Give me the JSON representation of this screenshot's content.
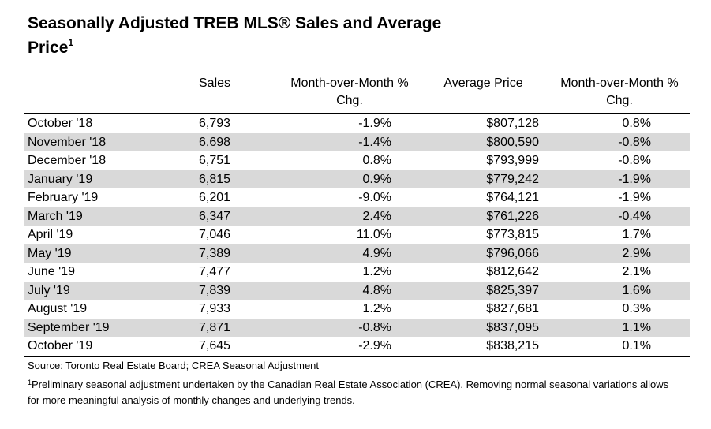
{
  "title": {
    "text": "Seasonally Adjusted TREB MLS® Sales and Average Price",
    "superscript": "1"
  },
  "headers": {
    "sales": "Sales",
    "mom_sales": "Month-over-Month % Chg.",
    "avg_price": "Average Price",
    "mom_price": "Month-over-Month % Chg."
  },
  "rows": [
    {
      "month": "October '18",
      "sales": "6,793",
      "sales_chg": "-1.9%",
      "price": "$807,128",
      "price_chg": "0.8%"
    },
    {
      "month": "November '18",
      "sales": "6,698",
      "sales_chg": "-1.4%",
      "price": "$800,590",
      "price_chg": "-0.8%"
    },
    {
      "month": "December '18",
      "sales": "6,751",
      "sales_chg": "0.8%",
      "price": "$793,999",
      "price_chg": "-0.8%"
    },
    {
      "month": "January '19",
      "sales": "6,815",
      "sales_chg": "0.9%",
      "price": "$779,242",
      "price_chg": "-1.9%"
    },
    {
      "month": "February '19",
      "sales": "6,201",
      "sales_chg": "-9.0%",
      "price": "$764,121",
      "price_chg": "-1.9%"
    },
    {
      "month": "March '19",
      "sales": "6,347",
      "sales_chg": "2.4%",
      "price": "$761,226",
      "price_chg": "-0.4%"
    },
    {
      "month": "April '19",
      "sales": "7,046",
      "sales_chg": "11.0%",
      "price": "$773,815",
      "price_chg": "1.7%"
    },
    {
      "month": "May '19",
      "sales": "7,389",
      "sales_chg": "4.9%",
      "price": "$796,066",
      "price_chg": "2.9%"
    },
    {
      "month": "June '19",
      "sales": "7,477",
      "sales_chg": "1.2%",
      "price": "$812,642",
      "price_chg": "2.1%"
    },
    {
      "month": "July '19",
      "sales": "7,839",
      "sales_chg": "4.8%",
      "price": "$825,397",
      "price_chg": "1.6%"
    },
    {
      "month": "August '19",
      "sales": "7,933",
      "sales_chg": "1.2%",
      "price": "$827,681",
      "price_chg": "0.3%"
    },
    {
      "month": "September '19",
      "sales": "7,871",
      "sales_chg": "-0.8%",
      "price": "$837,095",
      "price_chg": "1.1%"
    },
    {
      "month": "October '19",
      "sales": "7,645",
      "sales_chg": "-2.9%",
      "price": "$838,215",
      "price_chg": "0.1%"
    }
  ],
  "source": "Source: Toronto Real Estate Board; CREA Seasonal Adjustment",
  "footnote": {
    "marker": "1",
    "text": "Preliminary seasonal adjustment undertaken by the Canadian Real Estate Association (CREA).  Removing normal seasonal variations allows for more meaningful analysis of monthly changes and underlying trends."
  },
  "colors": {
    "row_shade": "#d9d9d9",
    "text": "#000000"
  }
}
